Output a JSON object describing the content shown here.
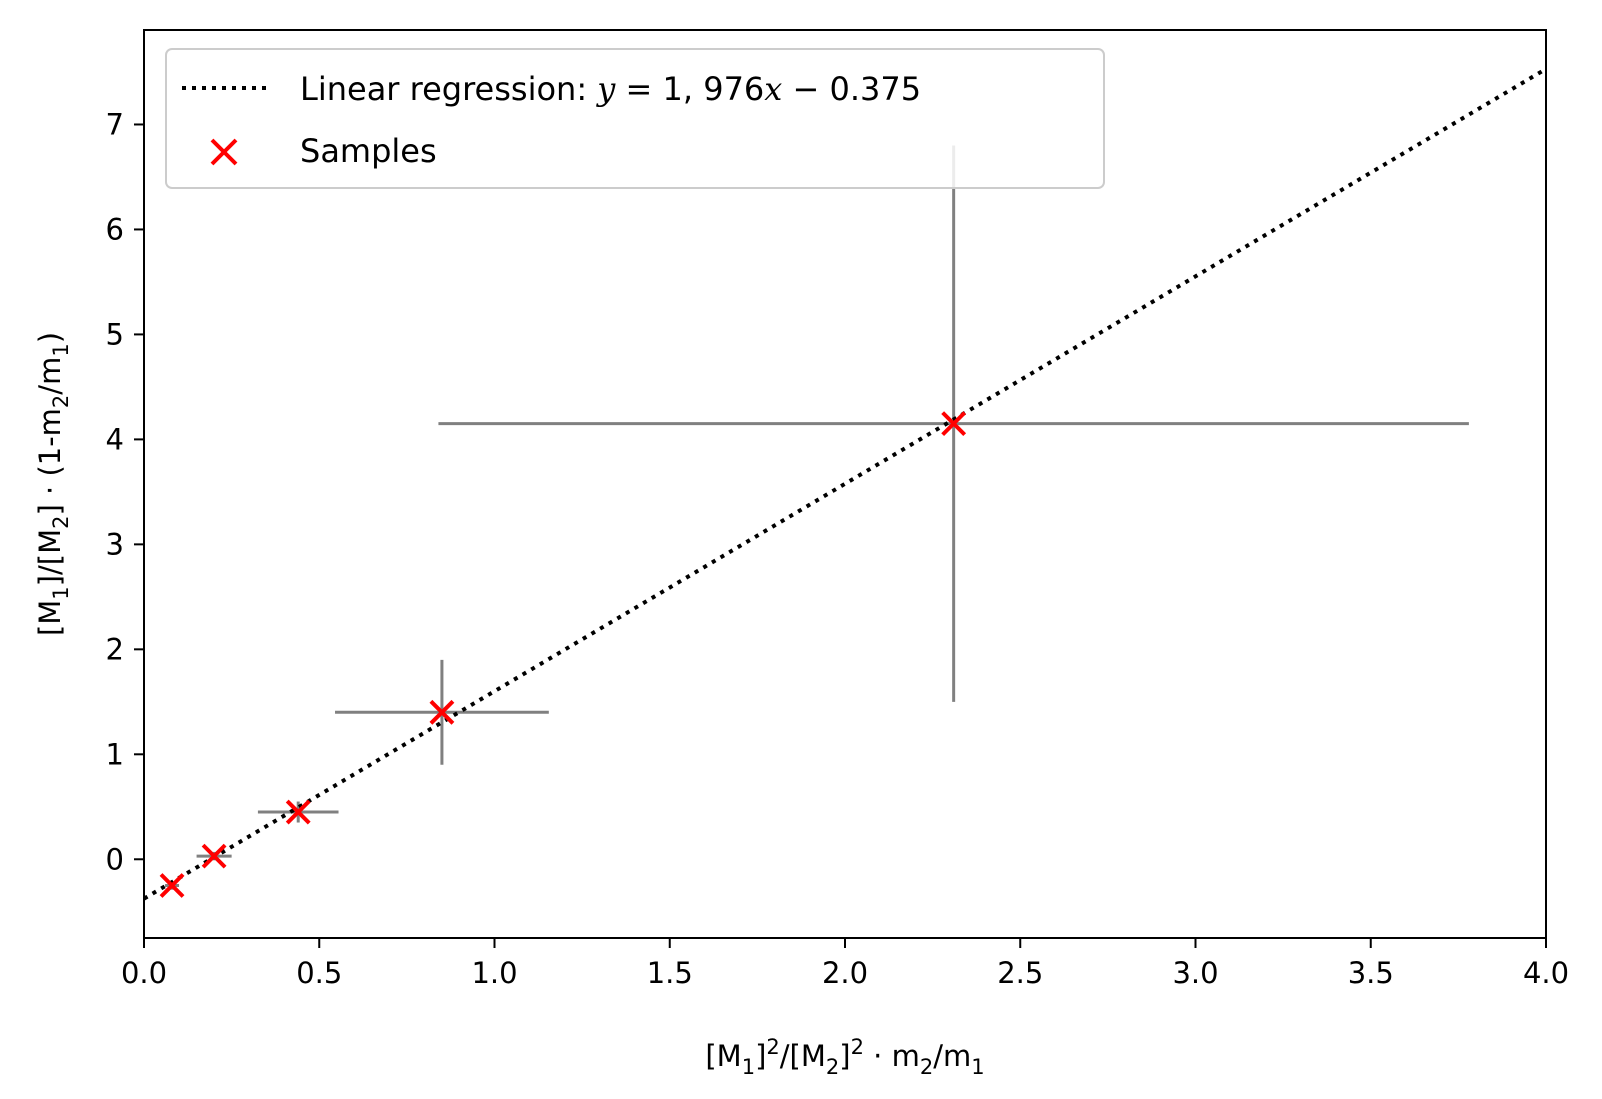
{
  "chart_data": {
    "type": "scatter",
    "xlabel": {
      "t1": "[M",
      "s1": "1",
      "t2": "]",
      "p1": "2",
      "t3": "/[M",
      "s2": "2",
      "t4": "]",
      "p2": "2",
      "t5": " · m",
      "s3": "2",
      "t6": "/m",
      "s4": "1"
    },
    "ylabel": {
      "t1": "[M",
      "s1": "1",
      "t2": "]/[M",
      "s2": "2",
      "t3": "] · (1-m",
      "s3": "2",
      "t4": "/m",
      "s4": "1",
      "t5": ")"
    },
    "xlim": [
      0,
      4
    ],
    "ylim": [
      -0.75,
      7.9
    ],
    "x_ticks": [
      {
        "value": 0,
        "label": "0.0"
      },
      {
        "value": 0.5,
        "label": "0.5"
      },
      {
        "value": 1.0,
        "label": "1.0"
      },
      {
        "value": 1.5,
        "label": "1.5"
      },
      {
        "value": 2.0,
        "label": "2.0"
      },
      {
        "value": 2.5,
        "label": "2.5"
      },
      {
        "value": 3.0,
        "label": "3.0"
      },
      {
        "value": 3.5,
        "label": "3.5"
      },
      {
        "value": 4.0,
        "label": "4.0"
      }
    ],
    "y_ticks": [
      {
        "value": 0,
        "label": "0"
      },
      {
        "value": 1,
        "label": "1"
      },
      {
        "value": 2,
        "label": "2"
      },
      {
        "value": 3,
        "label": "3"
      },
      {
        "value": 4,
        "label": "4"
      },
      {
        "value": 5,
        "label": "5"
      },
      {
        "value": 6,
        "label": "6"
      },
      {
        "value": 7,
        "label": "7"
      }
    ],
    "grid": false,
    "legend_position": "top-left",
    "series": [
      {
        "name": "Linear regression",
        "kind": "line",
        "style": "dotted",
        "color": "#000000",
        "slope": 1.976,
        "intercept": -0.375,
        "x_range": [
          0,
          4
        ]
      },
      {
        "name": "Samples",
        "kind": "scatter",
        "marker": "x",
        "color": "#ff0000",
        "points": [
          {
            "x": 0.08,
            "y": -0.25,
            "xerr": 0.02,
            "yerr": 0.04
          },
          {
            "x": 0.2,
            "y": 0.03,
            "xerr": 0.05,
            "yerr": 0.04
          },
          {
            "x": 0.44,
            "y": 0.45,
            "xerr": 0.115,
            "yerr": 0.1
          },
          {
            "x": 0.85,
            "y": 1.4,
            "xerr": 0.305,
            "yerr": 0.5
          },
          {
            "x": 2.31,
            "y": 4.15,
            "xerr": 1.47,
            "yerr": 2.65
          }
        ]
      }
    ],
    "errorbar_color": "#808080",
    "legend": [
      {
        "label_plain": "Linear regression: ",
        "label_math": "y",
        "label_eq": " = 1, 976",
        "label_math2": "x",
        "label_rest": " − 0.375"
      },
      {
        "label_plain": "Samples"
      }
    ]
  }
}
